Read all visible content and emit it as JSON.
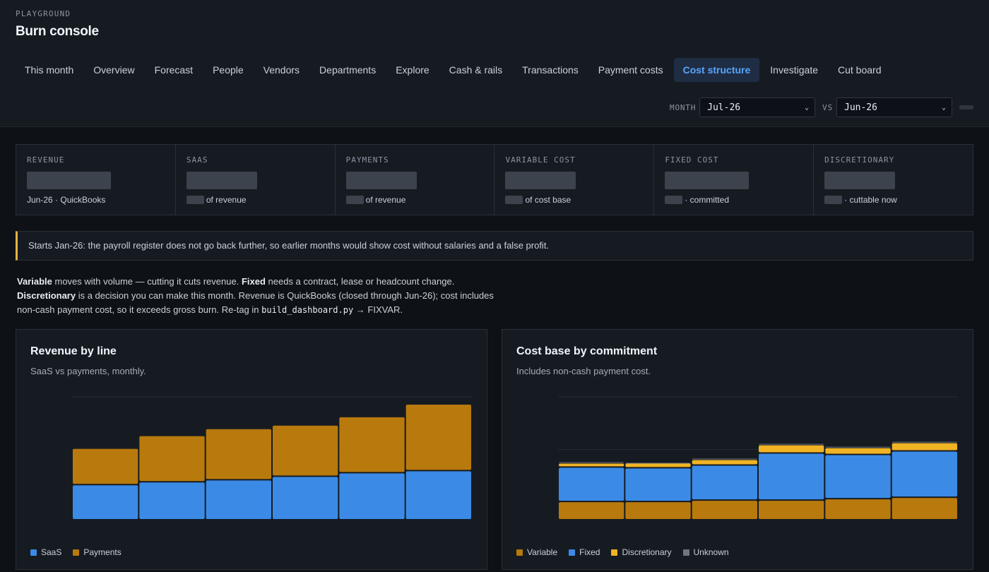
{
  "header": {
    "eyebrow": "PLAYGROUND",
    "title": "Burn console"
  },
  "tabs": [
    {
      "label": "This month",
      "active": false
    },
    {
      "label": "Overview",
      "active": false
    },
    {
      "label": "Forecast",
      "active": false
    },
    {
      "label": "People",
      "active": false
    },
    {
      "label": "Vendors",
      "active": false
    },
    {
      "label": "Departments",
      "active": false
    },
    {
      "label": "Explore",
      "active": false
    },
    {
      "label": "Cash & rails",
      "active": false
    },
    {
      "label": "Transactions",
      "active": false
    },
    {
      "label": "Payment costs",
      "active": false
    },
    {
      "label": "Cost structure",
      "active": true
    },
    {
      "label": "Investigate",
      "active": false
    },
    {
      "label": "Cut board",
      "active": false
    }
  ],
  "controls": {
    "month_label": "MONTH",
    "month_value": "Jul-26",
    "vs_label": "VS",
    "vs_value": "Jun-26"
  },
  "kpis": [
    {
      "label": "REVENUE",
      "sub": "Jun-26 · QuickBooks"
    },
    {
      "label": "SAAS",
      "sub": "of revenue"
    },
    {
      "label": "PAYMENTS",
      "sub": "of revenue"
    },
    {
      "label": "VARIABLE COST",
      "sub": "of cost base"
    },
    {
      "label": "FIXED COST",
      "sub": "· committed"
    },
    {
      "label": "DISCRETIONARY",
      "sub": "· cuttable now"
    }
  ],
  "notice": "Starts Jan-26: the payroll register does not go back further, so earlier months would show cost without salaries and a false profit.",
  "description": {
    "variable_term": "Variable",
    "variable_text": " moves with volume — cutting it cuts revenue. ",
    "fixed_term": "Fixed",
    "fixed_text": " needs a contract, lease or headcount change.",
    "discretionary_term": "Discretionary",
    "discretionary_text": " is a decision you can make this month. Revenue is QuickBooks (closed through Jun-26); cost includes non-cash payment cost, so it exceeds gross burn. Re-tag in ",
    "code": "build_dashboard.py",
    "tail": " → FIXVAR."
  },
  "colors": {
    "saas": "#3b8be6",
    "payments": "#b8790d",
    "variable": "#b8790d",
    "fixed": "#3b8be6",
    "discretionary": "#f0b323",
    "unknown": "#6e7681",
    "accent": "#58a6ff"
  },
  "chart_data": [
    {
      "type": "bar",
      "stacked": true,
      "title": "Revenue by line",
      "subtitle": "SaaS vs payments, monthly.",
      "categories": [
        "",
        "",
        "",
        "",
        "",
        ""
      ],
      "series": [
        {
          "name": "SaaS",
          "values": [
            50,
            54,
            57,
            62,
            67,
            70
          ]
        },
        {
          "name": "Payments",
          "values": [
            52,
            66,
            73,
            73,
            80,
            95
          ]
        }
      ],
      "ylim": [
        0,
        175
      ],
      "grid": true,
      "legend": "bottom-left"
    },
    {
      "type": "bar",
      "stacked": true,
      "title": "Cost base by commitment",
      "subtitle": "Includes non-cash payment cost.",
      "categories": [
        "",
        "",
        "",
        "",
        "",
        ""
      ],
      "series": [
        {
          "name": "Variable",
          "values": [
            26,
            26,
            28,
            28,
            30,
            32
          ]
        },
        {
          "name": "Fixed",
          "values": [
            49,
            48,
            50,
            67,
            63,
            66
          ]
        },
        {
          "name": "Discretionary",
          "values": [
            6,
            7,
            8,
            12,
            10,
            12
          ]
        },
        {
          "name": "Unknown",
          "values": [
            2,
            1,
            2,
            2,
            2,
            2
          ]
        }
      ],
      "ylim": [
        0,
        175
      ],
      "grid": true,
      "legend": "bottom-left"
    }
  ]
}
